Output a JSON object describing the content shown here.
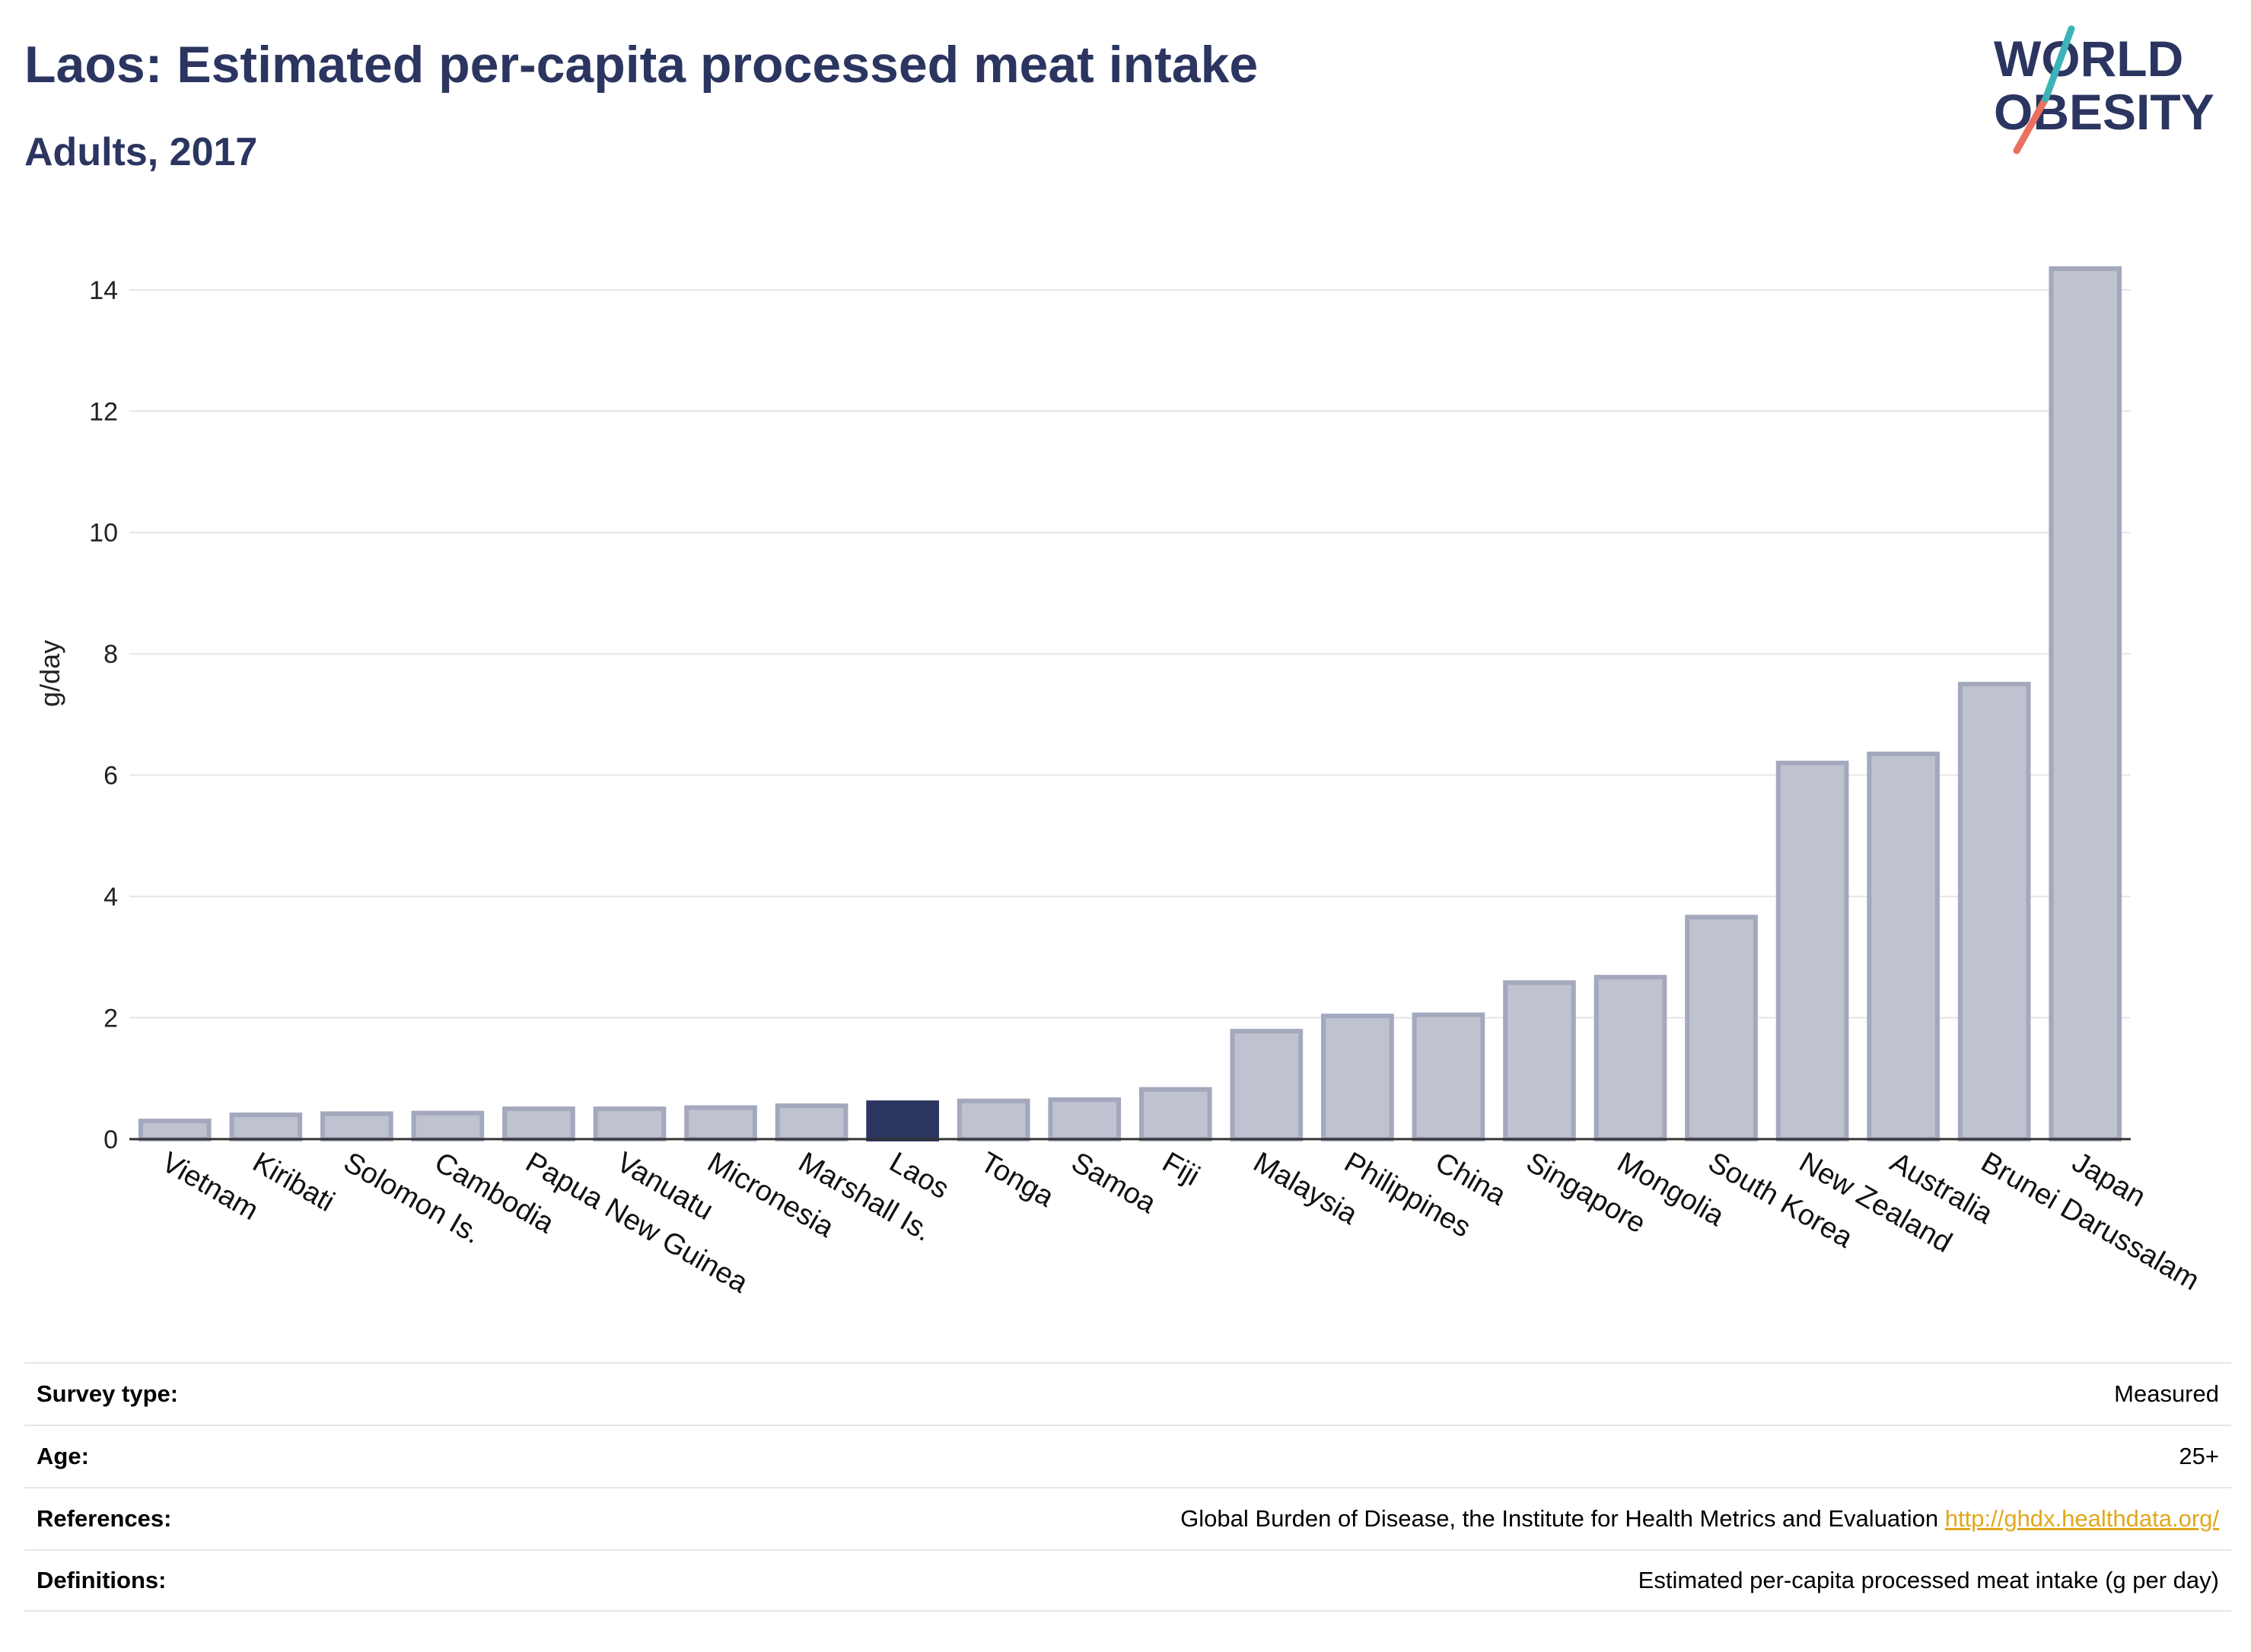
{
  "header": {
    "title": "Laos: Estimated per-capita processed meat intake",
    "subtitle": "Adults, 2017"
  },
  "logo": {
    "line1": "WORLD",
    "line2": "OBESITY",
    "teal": "#3bb3b9",
    "coral": "#e9715f",
    "navy": "#2b3560"
  },
  "chart_data": {
    "type": "bar",
    "ylabel": "g/day",
    "ylim": [
      0,
      14.6
    ],
    "yticks": [
      0,
      2,
      4,
      6,
      8,
      10,
      12,
      14
    ],
    "grid": true,
    "highlight": "Laos",
    "colors": {
      "bar": "#bfc2cf",
      "bar_edge": "#a3a8bd",
      "highlight": "#2b3560",
      "grid": "#e6e6ea",
      "axis": "#333333"
    },
    "categories": [
      "Vietnam",
      "Kiribati",
      "Solomon Is.",
      "Cambodia",
      "Papua New Guinea",
      "Vanuatu",
      "Micronesia",
      "Marshall Is.",
      "Laos",
      "Tonga",
      "Samoa",
      "Fiji",
      "Malaysia",
      "Philippines",
      "China",
      "Singapore",
      "Mongolia",
      "South Korea",
      "New Zealand",
      "Australia",
      "Brunei Darussalam",
      "Japan"
    ],
    "values": [
      0.3,
      0.4,
      0.42,
      0.43,
      0.5,
      0.5,
      0.52,
      0.55,
      0.6,
      0.63,
      0.65,
      0.82,
      1.78,
      2.03,
      2.05,
      2.58,
      2.67,
      3.66,
      6.2,
      6.35,
      7.5,
      14.35
    ]
  },
  "info": [
    {
      "label": "Survey type:",
      "value": "Measured"
    },
    {
      "label": "Age:",
      "value": "25+"
    },
    {
      "label": "References:",
      "value": "Global Burden of Disease, the Institute for Health Metrics and Evaluation",
      "link": "http://ghdx.healthdata.org/"
    },
    {
      "label": "Definitions:",
      "value": "Estimated per-capita processed meat intake (g per day)"
    }
  ]
}
